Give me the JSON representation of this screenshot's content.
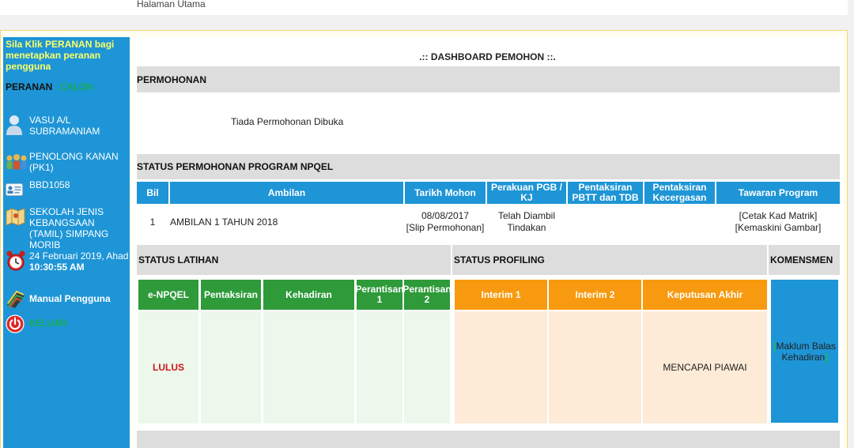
{
  "topbar": {
    "breadcrumb": "Halaman Utama"
  },
  "sidebar": {
    "hint": "Sila Klik PERANAN bagi menetapkan peranan pengguna",
    "role_label": "PERANAN",
    "role_sep": " : ",
    "role_value": "CALON",
    "user_name": "VASU A/L SUBRAMANIAM",
    "position": "PENOLONG KANAN (PK1)",
    "id_code": "BBD1058",
    "school": "SEKOLAH JENIS KEBANGSAAN (TAMIL) SIMPANG MORIB",
    "date": "24 Februari 2019, Ahad",
    "time": "10:30:55 AM",
    "manual": "Manual Pengguna",
    "logout": "KELUAR"
  },
  "main": {
    "title": ".:: DASHBOARD PEMOHON ::.",
    "permohonan_header": "PERMOHONAN",
    "permohonan_empty": "Tiada Permohonan Dibuka",
    "status_header": "STATUS PERMOHONAN PROGRAM NPQEL",
    "table": {
      "columns": [
        "Bil",
        "Ambilan",
        "Tarikh Mohon",
        "Perakuan PGB / KJ",
        "Pentaksiran PBTT dan TDB",
        "Pentaksiran Kecergasan",
        "Tawaran Program"
      ],
      "row": {
        "bil": "1",
        "ambilan": "AMBILAN 1 TAHUN 2018",
        "tarikh": "08/08/2017",
        "slip": "[Slip Permohonan]",
        "perakuan": "Telah Diambil Tindakan",
        "pbtt": "",
        "kecergasan": "",
        "cetak": "[Cetak Kad Matrik]",
        "kemaskini": "[Kemaskini Gambar]"
      }
    },
    "latihan": {
      "header": "STATUS LATIHAN",
      "columns": [
        "e-NPQEL",
        "Pentaksiran",
        "Kehadiran",
        "Perantisan 1",
        "Perantisan 2"
      ],
      "result": "LULUS"
    },
    "profiling": {
      "header": "STATUS PROFILING",
      "columns": [
        "Interim 1",
        "Interim 2",
        "Keputusan Akhir"
      ],
      "result": "MENCAPAI PIAWAI"
    },
    "komensmen": {
      "header": "KOMENSMEN",
      "bracket_open": "[",
      "text": "Maklum Balas Kehadiran",
      "bracket_close": "]"
    }
  },
  "colors": {
    "sidebar_blue": "#1e95d6",
    "latihan_green": "#2e9a3a",
    "profiling_orange": "#f79a0f",
    "lulus_red": "#d0161b",
    "role_green": "#11b520"
  }
}
